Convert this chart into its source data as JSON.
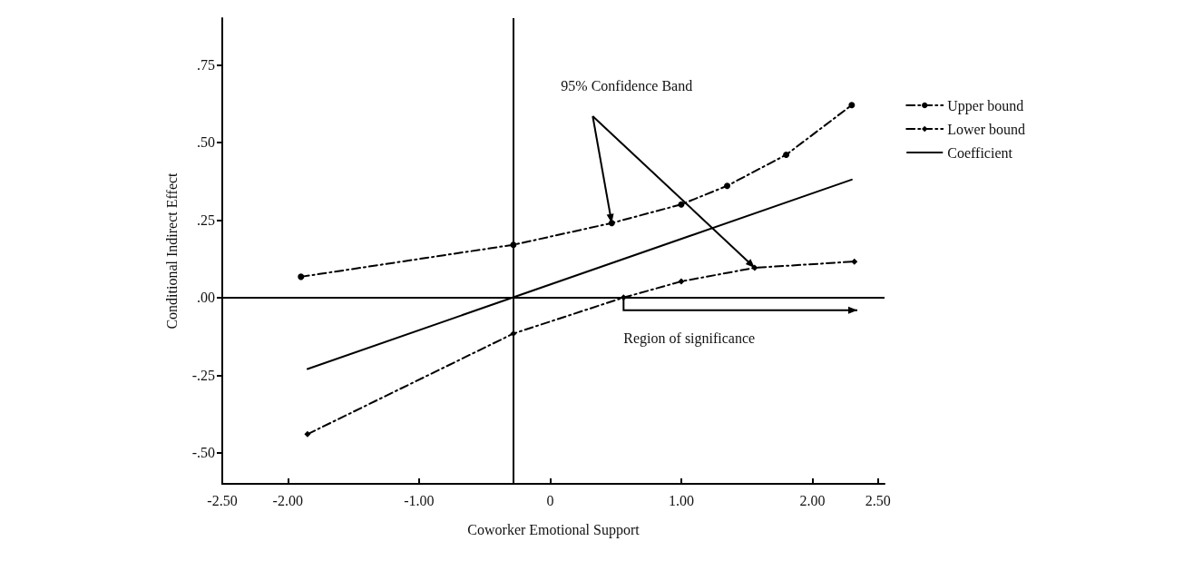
{
  "chart_data": {
    "type": "line",
    "xlabel": "Coworker Emotional Support",
    "ylabel": "Conditional Indirect Effect",
    "xlim": [
      -2.5,
      2.55
    ],
    "xticks": [
      {
        "value": -2.5,
        "label": "-2.50"
      },
      {
        "value": -2,
        "label": "-2.00"
      },
      {
        "value": -1,
        "label": "-1.00"
      },
      0,
      {
        "value": 1,
        "label": "1.00"
      },
      {
        "value": 2,
        "label": "2.00"
      },
      {
        "value": 2.5,
        "label": "2.50"
      }
    ],
    "ylim": [
      -0.6,
      0.9
    ],
    "yticks": [
      {
        "value": -0.5,
        "label": "-.50"
      },
      {
        "value": -0.25,
        "label": "-.25"
      },
      {
        "value": 0,
        "label": ".00"
      },
      {
        "value": 0.25,
        "label": ".25"
      },
      {
        "value": 0.5,
        "label": ".50"
      },
      {
        "value": 0.75,
        "label": ".75"
      }
    ],
    "series": [
      {
        "name": "Upper bound",
        "color": "#000000",
        "marker": "circle",
        "line_style": "dashed",
        "x": [
          -1.9,
          -0.28,
          0.47,
          1.0,
          1.35,
          1.8,
          2.3
        ],
        "values": [
          0.067,
          0.17,
          0.24,
          0.3,
          0.36,
          0.46,
          0.62
        ]
      },
      {
        "name": "Lower bound",
        "color": "#000000",
        "marker": "diamond",
        "line_style": "dashed",
        "x": [
          -1.85,
          -0.28,
          0.56,
          1.0,
          1.56,
          2.32
        ],
        "values": [
          -0.44,
          -0.116,
          0.0,
          0.052,
          0.096,
          0.116
        ]
      },
      {
        "name": "Coefficient",
        "color": "#000000",
        "marker": "none",
        "line_style": "solid",
        "x": [
          -1.85,
          2.3
        ],
        "values": [
          -0.23,
          0.38
        ]
      }
    ],
    "ref_lines": [
      {
        "axis": "x",
        "value": -0.28,
        "color": "#000000"
      },
      {
        "axis": "y",
        "value": 0,
        "color": "#000000"
      }
    ],
    "annotations": [
      "95% Confidence Band",
      "Region of significance"
    ],
    "grid": false,
    "legend": "top right"
  }
}
